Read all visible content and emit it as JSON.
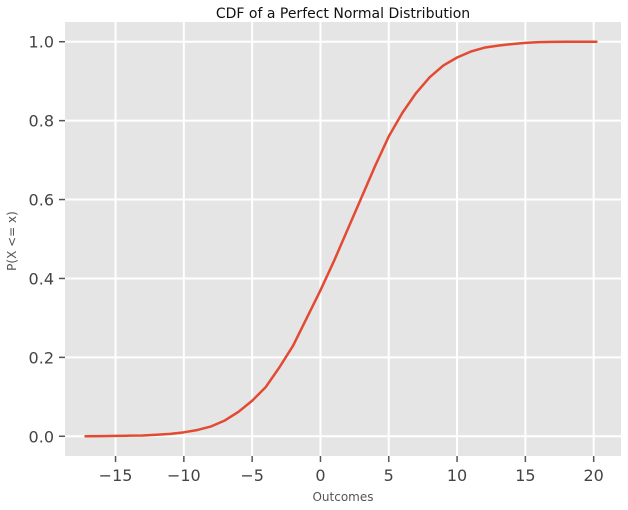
{
  "chart_data": {
    "type": "line",
    "title": "CDF of a Perfect Normal Distribution",
    "xlabel": "Outcomes",
    "ylabel": "P(X <= x)",
    "xlim": [
      -18.7,
      22
    ],
    "ylim": [
      -0.05,
      1.05
    ],
    "grid": true,
    "x_ticks": [
      -15,
      -10,
      -5,
      0,
      5,
      10,
      15,
      20
    ],
    "x_tick_labels": [
      "−15",
      "−10",
      "−5",
      "0",
      "5",
      "10",
      "15",
      "20"
    ],
    "y_ticks": [
      0.0,
      0.2,
      0.4,
      0.6,
      0.8,
      1.0
    ],
    "y_tick_labels": [
      "0.0",
      "0.2",
      "0.4",
      "0.6",
      "0.8",
      "1.0"
    ],
    "series": [
      {
        "color": "#E24A33",
        "x": [
          -17.2,
          -16,
          -15,
          -14,
          -13,
          -12,
          -11,
          -10,
          -9,
          -8,
          -7,
          -6,
          -5,
          -4,
          -3,
          -2,
          -1,
          0,
          1,
          2,
          3,
          4,
          5,
          6,
          7,
          8,
          9,
          10,
          11,
          12,
          13,
          14,
          15,
          16,
          17,
          18,
          19,
          20.2
        ],
        "y": [
          0.0,
          0.0005,
          0.001,
          0.0015,
          0.002,
          0.004,
          0.006,
          0.01,
          0.016,
          0.025,
          0.04,
          0.062,
          0.09,
          0.125,
          0.175,
          0.23,
          0.3,
          0.37,
          0.445,
          0.525,
          0.605,
          0.685,
          0.76,
          0.82,
          0.87,
          0.91,
          0.94,
          0.96,
          0.975,
          0.985,
          0.99,
          0.994,
          0.997,
          0.999,
          0.9995,
          1.0,
          1.0,
          1.0
        ]
      }
    ],
    "colors": {
      "plot_background": "#E5E5E5",
      "grid": "#FFFFFF",
      "line": "#E24A33"
    }
  }
}
